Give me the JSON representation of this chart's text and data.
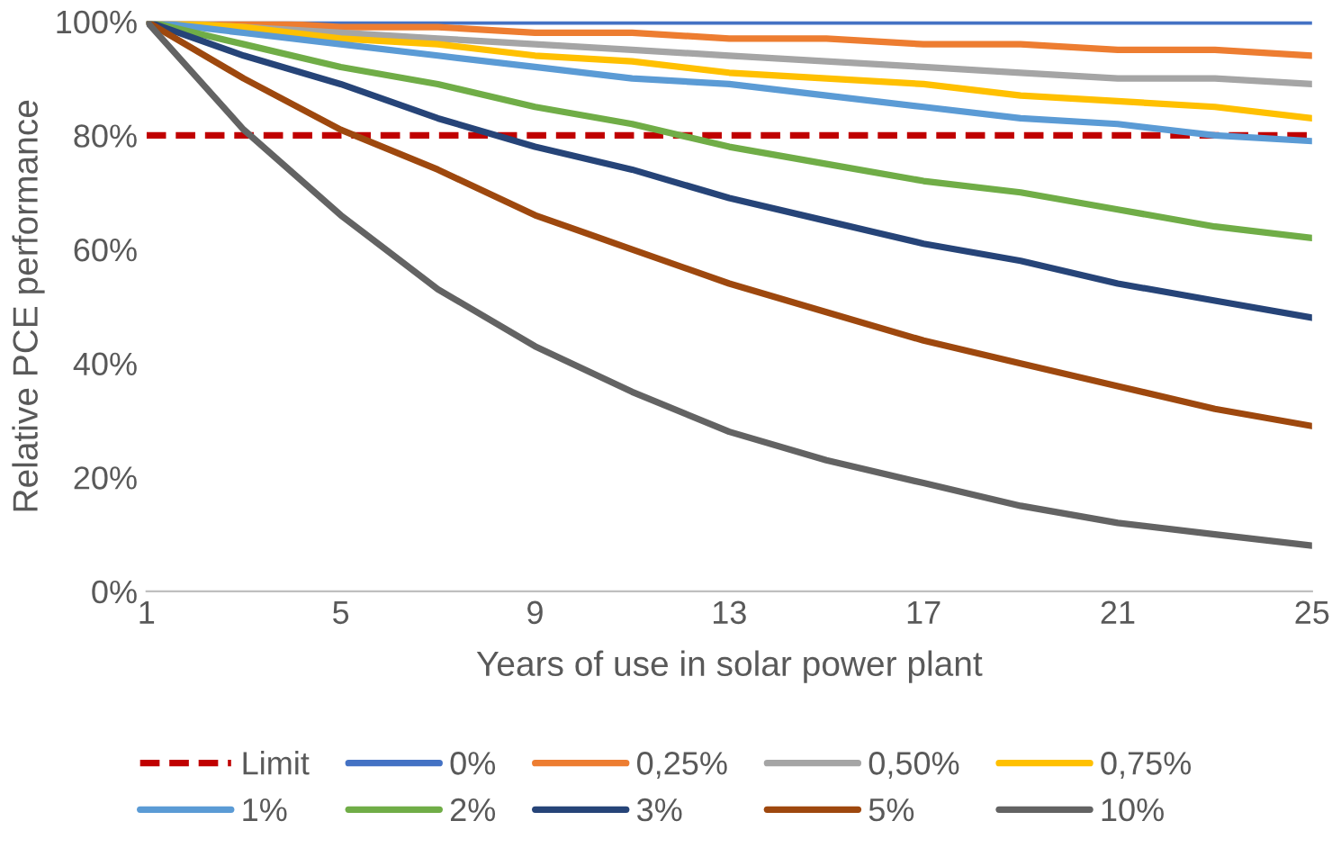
{
  "chart_data": {
    "type": "line",
    "xlabel": "Years of use in solar power plant",
    "ylabel": "Relative PCE performance",
    "x": [
      1,
      3,
      5,
      7,
      9,
      11,
      13,
      15,
      17,
      19,
      21,
      23,
      25
    ],
    "xlim": [
      1,
      25
    ],
    "xticks": [
      1,
      5,
      9,
      13,
      17,
      21,
      25
    ],
    "ylim": [
      0,
      100
    ],
    "yticks": [
      {
        "value": 0,
        "label": "0%"
      },
      {
        "value": 20,
        "label": "20%"
      },
      {
        "value": 40,
        "label": "40%"
      },
      {
        "value": 60,
        "label": "60%"
      },
      {
        "value": 80,
        "label": "80%"
      },
      {
        "value": 100,
        "label": "100%"
      }
    ],
    "grid": false,
    "legend": "bottom",
    "marker": "none",
    "series": [
      {
        "name": "Limit",
        "color": "#c00000",
        "line_style": "dashed",
        "values": [
          80,
          80,
          80,
          80,
          80,
          80,
          80,
          80,
          80,
          80,
          80,
          80,
          80
        ]
      },
      {
        "name": "0%",
        "color": "#4472c4",
        "values": [
          100,
          100,
          100,
          100,
          100,
          100,
          100,
          100,
          100,
          100,
          100,
          100,
          100
        ]
      },
      {
        "name": "0,25%",
        "color": "#ed7d31",
        "values": [
          100,
          100,
          99,
          99,
          98,
          98,
          97,
          97,
          96,
          96,
          95,
          95,
          94
        ]
      },
      {
        "name": "0,50%",
        "color": "#a5a5a5",
        "values": [
          100,
          99,
          98,
          97,
          96,
          95,
          94,
          93,
          92,
          91,
          90,
          90,
          89
        ]
      },
      {
        "name": "0,75%",
        "color": "#ffc000",
        "values": [
          100,
          99,
          97,
          96,
          94,
          93,
          91,
          90,
          89,
          87,
          86,
          85,
          83
        ]
      },
      {
        "name": "1%",
        "color": "#5b9bd5",
        "values": [
          100,
          98,
          96,
          94,
          92,
          90,
          89,
          87,
          85,
          83,
          82,
          80,
          79
        ]
      },
      {
        "name": "2%",
        "color": "#70ad47",
        "values": [
          100,
          96,
          92,
          89,
          85,
          82,
          78,
          75,
          72,
          70,
          67,
          64,
          62
        ]
      },
      {
        "name": "3%",
        "color": "#264478",
        "values": [
          100,
          94,
          89,
          83,
          78,
          74,
          69,
          65,
          61,
          58,
          54,
          51,
          48
        ]
      },
      {
        "name": "5%",
        "color": "#9e480e",
        "values": [
          100,
          90,
          81,
          74,
          66,
          60,
          54,
          49,
          44,
          40,
          36,
          32,
          29
        ]
      },
      {
        "name": "10%",
        "color": "#636363",
        "values": [
          100,
          81,
          66,
          53,
          43,
          35,
          28,
          23,
          19,
          15,
          12,
          10,
          8
        ]
      }
    ]
  }
}
